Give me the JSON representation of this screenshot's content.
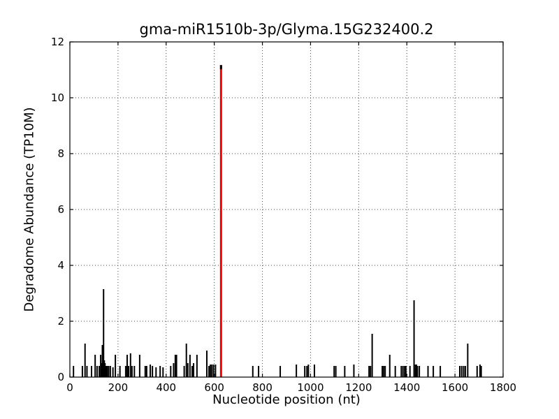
{
  "chart_data": {
    "type": "bar",
    "title": "gma-miR1510b-3p/Glyma.15G232400.2",
    "xlabel": "Nucleotide position (nt)",
    "ylabel": "Degradome Abundance (TP10M)",
    "xlim": [
      0,
      1800
    ],
    "ylim": [
      0,
      12
    ],
    "xticks": [
      0,
      200,
      400,
      600,
      800,
      1000,
      1200,
      1400,
      1600,
      1800
    ],
    "yticks": [
      0,
      2,
      4,
      6,
      8,
      10,
      12
    ],
    "grid": "dotted",
    "legend": "none",
    "bar_color": "#000000",
    "highlight_color": "#ee0000",
    "highlight": {
      "x": 628,
      "value": 11.17
    },
    "spikes": [
      {
        "x": 15,
        "v": 0.4
      },
      {
        "x": 52,
        "v": 0.4
      },
      {
        "x": 63,
        "v": 1.2
      },
      {
        "x": 71,
        "v": 0.4
      },
      {
        "x": 90,
        "v": 0.4
      },
      {
        "x": 105,
        "v": 0.8
      },
      {
        "x": 113,
        "v": 0.4
      },
      {
        "x": 122,
        "v": 0.4
      },
      {
        "x": 128,
        "v": 0.8
      },
      {
        "x": 132,
        "v": 0.5
      },
      {
        "x": 135,
        "v": 1.15
      },
      {
        "x": 140,
        "v": 3.15
      },
      {
        "x": 143,
        "v": 0.6
      },
      {
        "x": 146,
        "v": 0.5
      },
      {
        "x": 150,
        "v": 0.4
      },
      {
        "x": 155,
        "v": 0.4
      },
      {
        "x": 161,
        "v": 0.4
      },
      {
        "x": 168,
        "v": 0.4
      },
      {
        "x": 179,
        "v": 0.35
      },
      {
        "x": 189,
        "v": 0.8
      },
      {
        "x": 208,
        "v": 0.4
      },
      {
        "x": 232,
        "v": 0.4
      },
      {
        "x": 238,
        "v": 0.8
      },
      {
        "x": 244,
        "v": 0.4
      },
      {
        "x": 252,
        "v": 0.85
      },
      {
        "x": 258,
        "v": 0.4
      },
      {
        "x": 268,
        "v": 0.4
      },
      {
        "x": 290,
        "v": 0.8
      },
      {
        "x": 313,
        "v": 0.4
      },
      {
        "x": 319,
        "v": 0.4
      },
      {
        "x": 334,
        "v": 0.45
      },
      {
        "x": 343,
        "v": 0.4
      },
      {
        "x": 358,
        "v": 0.35
      },
      {
        "x": 375,
        "v": 0.4
      },
      {
        "x": 387,
        "v": 0.35
      },
      {
        "x": 419,
        "v": 0.4
      },
      {
        "x": 431,
        "v": 0.5
      },
      {
        "x": 438,
        "v": 0.8
      },
      {
        "x": 443,
        "v": 0.8
      },
      {
        "x": 475,
        "v": 0.4
      },
      {
        "x": 484,
        "v": 1.2
      },
      {
        "x": 490,
        "v": 0.5
      },
      {
        "x": 499,
        "v": 0.8
      },
      {
        "x": 508,
        "v": 0.4
      },
      {
        "x": 514,
        "v": 0.5
      },
      {
        "x": 528,
        "v": 0.8
      },
      {
        "x": 569,
        "v": 0.95
      },
      {
        "x": 578,
        "v": 0.4
      },
      {
        "x": 584,
        "v": 0.45
      },
      {
        "x": 590,
        "v": 0.45
      },
      {
        "x": 597,
        "v": 0.45
      },
      {
        "x": 605,
        "v": 0.45
      },
      {
        "x": 628,
        "v": 11.17,
        "color": "#ee0000",
        "cap": true,
        "w": 3
      },
      {
        "x": 760,
        "v": 0.4
      },
      {
        "x": 784,
        "v": 0.4
      },
      {
        "x": 874,
        "v": 0.4
      },
      {
        "x": 941,
        "v": 0.45
      },
      {
        "x": 976,
        "v": 0.4
      },
      {
        "x": 985,
        "v": 0.4
      },
      {
        "x": 991,
        "v": 0.45
      },
      {
        "x": 1016,
        "v": 0.45
      },
      {
        "x": 1098,
        "v": 0.4
      },
      {
        "x": 1105,
        "v": 0.4
      },
      {
        "x": 1142,
        "v": 0.4
      },
      {
        "x": 1180,
        "v": 0.45
      },
      {
        "x": 1243,
        "v": 0.4
      },
      {
        "x": 1249,
        "v": 0.4
      },
      {
        "x": 1256,
        "v": 1.55
      },
      {
        "x": 1298,
        "v": 0.4
      },
      {
        "x": 1304,
        "v": 0.4
      },
      {
        "x": 1310,
        "v": 0.4
      },
      {
        "x": 1329,
        "v": 0.8
      },
      {
        "x": 1352,
        "v": 0.4
      },
      {
        "x": 1377,
        "v": 0.4
      },
      {
        "x": 1384,
        "v": 0.4
      },
      {
        "x": 1391,
        "v": 0.4
      },
      {
        "x": 1396,
        "v": 0.4
      },
      {
        "x": 1413,
        "v": 0.4
      },
      {
        "x": 1430,
        "v": 2.75
      },
      {
        "x": 1436,
        "v": 0.45
      },
      {
        "x": 1440,
        "v": 0.45
      },
      {
        "x": 1444,
        "v": 0.4
      },
      {
        "x": 1452,
        "v": 0.4
      },
      {
        "x": 1488,
        "v": 0.4
      },
      {
        "x": 1510,
        "v": 0.4
      },
      {
        "x": 1539,
        "v": 0.4
      },
      {
        "x": 1620,
        "v": 0.4
      },
      {
        "x": 1628,
        "v": 0.4
      },
      {
        "x": 1636,
        "v": 0.4
      },
      {
        "x": 1643,
        "v": 0.4
      },
      {
        "x": 1653,
        "v": 1.2
      },
      {
        "x": 1692,
        "v": 0.4
      },
      {
        "x": 1704,
        "v": 0.45
      },
      {
        "x": 1709,
        "v": 0.4
      }
    ]
  }
}
